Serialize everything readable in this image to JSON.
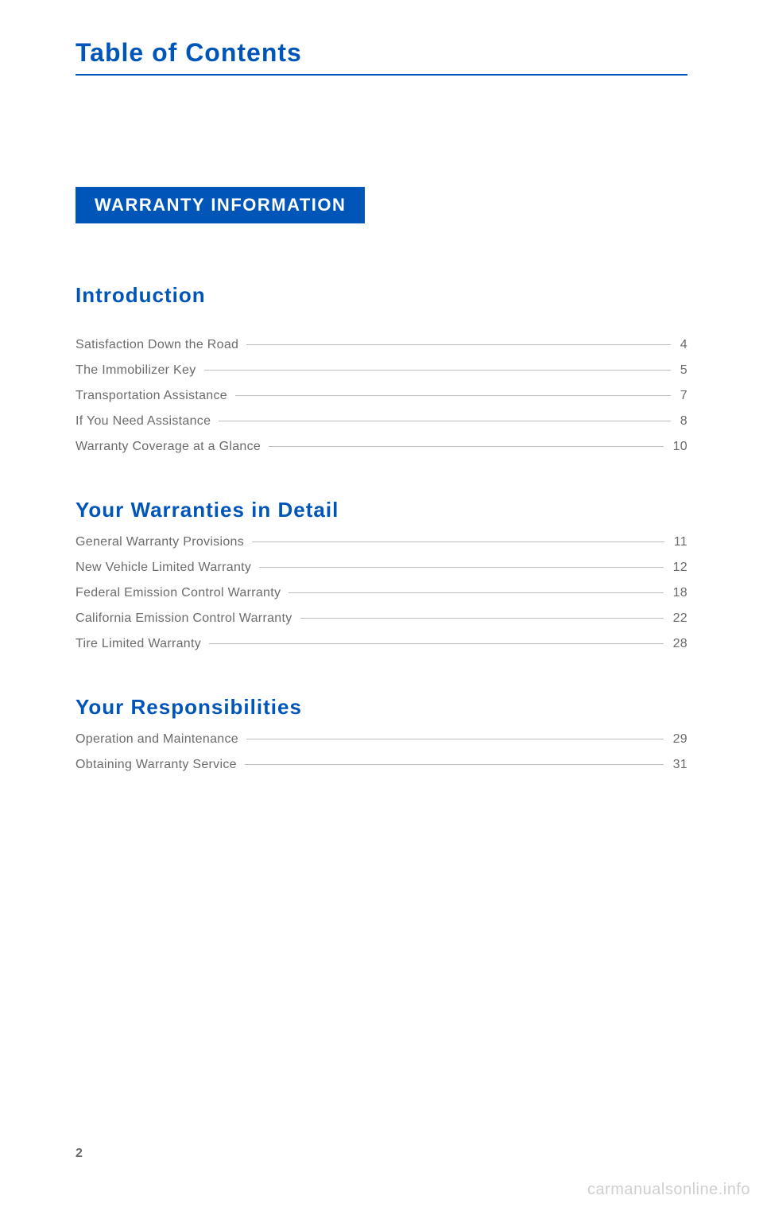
{
  "page": {
    "title": "Table of Contents",
    "banner": "WARRANTY INFORMATION",
    "number": "2",
    "watermark": "carmanualsonline.info"
  },
  "colors": {
    "accent": "#0056b8",
    "text_muted": "#6b6b6b",
    "leader": "#bdbdbd",
    "watermark": "#cfcfcf",
    "bg": "#ffffff"
  },
  "typography": {
    "title_fontsize": 32,
    "banner_fontsize": 22,
    "heading_fontsize": 26,
    "entry_fontsize": 16
  },
  "sections": [
    {
      "heading": "Introduction",
      "spacing": "loose",
      "entries": [
        {
          "label": "Satisfaction Down the Road",
          "page": "4"
        },
        {
          "label": "The Immobilizer Key",
          "page": "5"
        },
        {
          "label": "Transportation Assistance",
          "page": "7"
        },
        {
          "label": "If You Need Assistance",
          "page": "8"
        },
        {
          "label": "Warranty Coverage at a Glance",
          "page": "10"
        }
      ]
    },
    {
      "heading": "Your Warranties in Detail",
      "spacing": "tight",
      "entries": [
        {
          "label": "General Warranty Provisions",
          "page": "11"
        },
        {
          "label": "New Vehicle Limited Warranty",
          "page": "12"
        },
        {
          "label": "Federal Emission Control Warranty",
          "page": "18"
        },
        {
          "label": "California Emission Control Warranty",
          "page": "22"
        },
        {
          "label": "Tire Limited Warranty",
          "page": "28"
        }
      ]
    },
    {
      "heading": "Your Responsibilities",
      "spacing": "tight",
      "entries": [
        {
          "label": "Operation and Maintenance",
          "page": "29"
        },
        {
          "label": "Obtaining Warranty Service",
          "page": "31"
        }
      ]
    }
  ]
}
